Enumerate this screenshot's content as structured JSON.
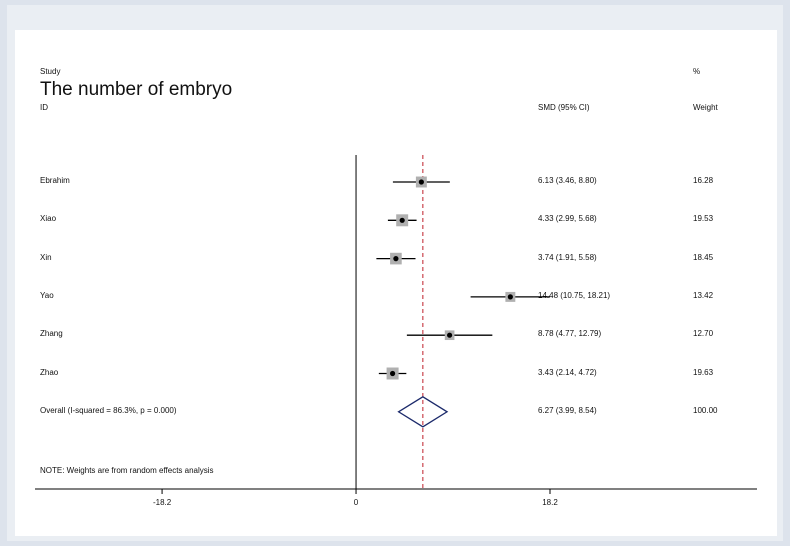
{
  "chart_data": {
    "type": "forest",
    "title": "The number of embryo",
    "header": {
      "study_label": "Study",
      "id_label": "ID",
      "effect_label": "SMD (95% CI)",
      "weight_label_top": "%",
      "weight_label": "Weight"
    },
    "studies": [
      {
        "name": "Ebrahim",
        "smd": 6.13,
        "lower": 3.46,
        "upper": 8.8,
        "ci_text": "6.13 (3.46, 8.80)",
        "weight": 16.28,
        "weight_text": "16.28"
      },
      {
        "name": "Xiao",
        "smd": 4.33,
        "lower": 2.99,
        "upper": 5.68,
        "ci_text": "4.33 (2.99, 5.68)",
        "weight": 19.53,
        "weight_text": "19.53"
      },
      {
        "name": "Xin",
        "smd": 3.74,
        "lower": 1.91,
        "upper": 5.58,
        "ci_text": "3.74 (1.91, 5.58)",
        "weight": 18.45,
        "weight_text": "18.45"
      },
      {
        "name": "Yao",
        "smd": 14.48,
        "lower": 10.75,
        "upper": 18.21,
        "ci_text": "14.48 (10.75, 18.21)",
        "weight": 13.42,
        "weight_text": "13.42"
      },
      {
        "name": "Zhang",
        "smd": 8.78,
        "lower": 4.77,
        "upper": 12.79,
        "ci_text": "8.78 (4.77, 12.79)",
        "weight": 12.7,
        "weight_text": "12.70"
      },
      {
        "name": "Zhao",
        "smd": 3.43,
        "lower": 2.14,
        "upper": 4.72,
        "ci_text": "3.43 (2.14, 4.72)",
        "weight": 19.63,
        "weight_text": "19.63"
      }
    ],
    "overall": {
      "label": "Overall  (I-squared = 86.3%, p = 0.000)",
      "smd": 6.27,
      "lower": 3.99,
      "upper": 8.54,
      "ci_text": "6.27 (3.99, 8.54)",
      "weight_text": "100.00"
    },
    "note": "NOTE: Weights are from random effects analysis",
    "x_ticks": [
      -18.2,
      0,
      18.2
    ],
    "x_tick_labels": [
      "-18.2",
      "0",
      "18.2"
    ],
    "xlim": [
      -32.0,
      39.5
    ],
    "colors": {
      "line": "#000000",
      "marker": "#000000",
      "weight_box": "#b0b0b0",
      "overall_diamond": "#1c2a6b",
      "overall_line": "#c0202a"
    }
  }
}
